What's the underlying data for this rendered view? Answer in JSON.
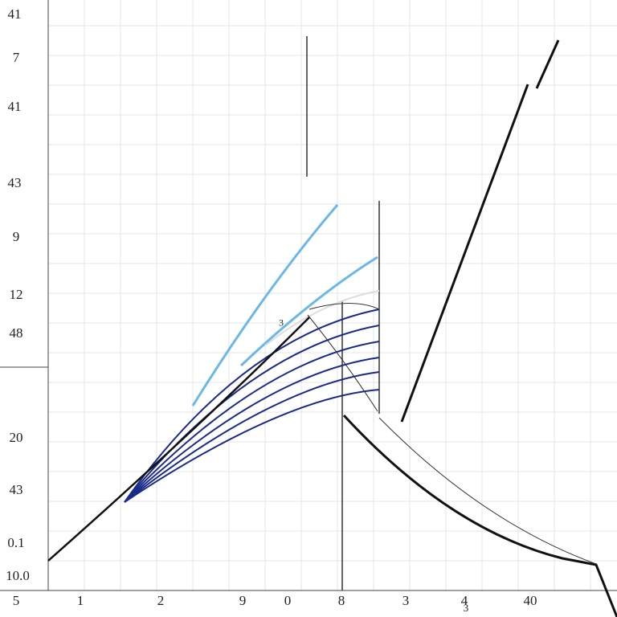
{
  "y_labels": [
    "41",
    "7",
    "41",
    "43",
    "9",
    "12",
    "48",
    "20",
    "43",
    "0.1",
    "10.0"
  ],
  "x_labels": [
    "5",
    "1",
    "2",
    "9",
    "0",
    "8",
    "3",
    "4",
    "40"
  ],
  "annotations": [
    "3",
    "3"
  ]
}
